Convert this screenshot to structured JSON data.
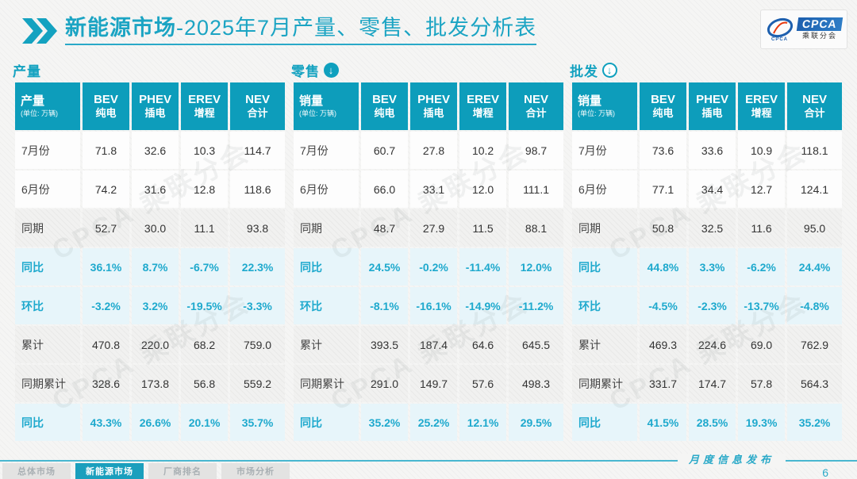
{
  "header": {
    "title_bold": "新能源市场",
    "title_rest": "-2025年7月产量、零售、批发分析表",
    "logo": {
      "cpca": "CPCA",
      "cn": "乘联分会"
    }
  },
  "watermark": "CPCA 乘联分会",
  "columns": [
    {
      "en": "BEV",
      "cn": "纯电"
    },
    {
      "en": "PHEV",
      "cn": "插电"
    },
    {
      "en": "EREV",
      "cn": "增程"
    },
    {
      "en": "NEV",
      "cn": "合计"
    }
  ],
  "tables": [
    {
      "section_label": "产量",
      "arrow_icon": "none",
      "first_header": "产量",
      "unit": "(单位: 万辆)",
      "rows": [
        {
          "label": "7月份",
          "type": "white",
          "values": [
            "71.8",
            "32.6",
            "10.3",
            "114.7"
          ]
        },
        {
          "label": "6月份",
          "type": "white",
          "values": [
            "74.2",
            "31.6",
            "12.8",
            "118.6"
          ]
        },
        {
          "label": "同期",
          "type": "gray",
          "values": [
            "52.7",
            "30.0",
            "11.1",
            "93.8"
          ]
        },
        {
          "label": "同比",
          "type": "pct",
          "values": [
            "36.1%",
            "8.7%",
            "-6.7%",
            "22.3%"
          ]
        },
        {
          "label": "环比",
          "type": "pct",
          "values": [
            "-3.2%",
            "3.2%",
            "-19.5%",
            "-3.3%"
          ]
        },
        {
          "label": "累计",
          "type": "gray",
          "values": [
            "470.8",
            "220.0",
            "68.2",
            "759.0"
          ]
        },
        {
          "label": "同期累计",
          "type": "gray",
          "values": [
            "328.6",
            "173.8",
            "56.8",
            "559.2"
          ]
        },
        {
          "label": "同比",
          "type": "pct",
          "values": [
            "43.3%",
            "26.6%",
            "20.1%",
            "35.7%"
          ]
        }
      ]
    },
    {
      "section_label": "零售",
      "arrow_icon": "solid-down",
      "first_header": "销量",
      "unit": "(单位: 万辆)",
      "rows": [
        {
          "label": "7月份",
          "type": "white",
          "values": [
            "60.7",
            "27.8",
            "10.2",
            "98.7"
          ]
        },
        {
          "label": "6月份",
          "type": "white",
          "values": [
            "66.0",
            "33.1",
            "12.0",
            "111.1"
          ]
        },
        {
          "label": "同期",
          "type": "gray",
          "values": [
            "48.7",
            "27.9",
            "11.5",
            "88.1"
          ]
        },
        {
          "label": "同比",
          "type": "pct",
          "values": [
            "24.5%",
            "-0.2%",
            "-11.4%",
            "12.0%"
          ]
        },
        {
          "label": "环比",
          "type": "pct",
          "values": [
            "-8.1%",
            "-16.1%",
            "-14.9%",
            "-11.2%"
          ]
        },
        {
          "label": "累计",
          "type": "gray",
          "values": [
            "393.5",
            "187.4",
            "64.6",
            "645.5"
          ]
        },
        {
          "label": "同期累计",
          "type": "gray",
          "values": [
            "291.0",
            "149.7",
            "57.6",
            "498.3"
          ]
        },
        {
          "label": "同比",
          "type": "pct",
          "values": [
            "35.2%",
            "25.2%",
            "12.1%",
            "29.5%"
          ]
        }
      ]
    },
    {
      "section_label": "批发",
      "arrow_icon": "outline-down",
      "first_header": "销量",
      "unit": "(单位: 万辆)",
      "rows": [
        {
          "label": "7月份",
          "type": "white",
          "values": [
            "73.6",
            "33.6",
            "10.9",
            "118.1"
          ]
        },
        {
          "label": "6月份",
          "type": "white",
          "values": [
            "77.1",
            "34.4",
            "12.7",
            "124.1"
          ]
        },
        {
          "label": "同期",
          "type": "gray",
          "values": [
            "50.8",
            "32.5",
            "11.6",
            "95.0"
          ]
        },
        {
          "label": "同比",
          "type": "pct",
          "values": [
            "44.8%",
            "3.3%",
            "-6.2%",
            "24.4%"
          ]
        },
        {
          "label": "环比",
          "type": "pct",
          "values": [
            "-4.5%",
            "-2.3%",
            "-13.7%",
            "-4.8%"
          ]
        },
        {
          "label": "累计",
          "type": "gray",
          "values": [
            "469.3",
            "224.6",
            "69.0",
            "762.9"
          ]
        },
        {
          "label": "同期累计",
          "type": "gray",
          "values": [
            "331.7",
            "174.7",
            "57.8",
            "564.3"
          ]
        },
        {
          "label": "同比",
          "type": "pct",
          "values": [
            "41.5%",
            "28.5%",
            "19.3%",
            "35.2%"
          ]
        }
      ]
    }
  ],
  "footer": {
    "tabs": [
      {
        "label": "总体市场",
        "active": false
      },
      {
        "label": "新能源市场",
        "active": true
      },
      {
        "label": "厂商排名",
        "active": false
      },
      {
        "label": "市场分析",
        "active": false
      }
    ],
    "publication": "月度信息发布",
    "page_number": "6"
  },
  "colors": {
    "accent_teal": "#0d9dbb",
    "title_teal": "#1ba4c3",
    "pct_text": "#1ea9cd",
    "pct_row_bg": "#e7f5fa",
    "gray_row_bg": "#f1f1f0",
    "active_tab_bg": "#1b9fbd",
    "logo_blue": "#1d5fae"
  }
}
